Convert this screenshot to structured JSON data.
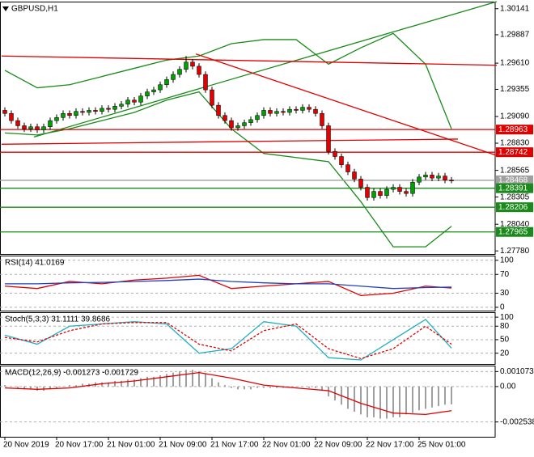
{
  "chart_data": [
    {
      "type": "candlestick",
      "title": "GBPUSD,H1",
      "categories": [
        "20 Nov 2019",
        null,
        null,
        null,
        null,
        null,
        null,
        null,
        "20 Nov 17:00",
        null,
        null,
        null,
        null,
        null,
        null,
        null,
        "21 Nov 01:00",
        null,
        null,
        null,
        null,
        null,
        null,
        null,
        "21 Nov 09:00",
        null,
        null,
        null,
        null,
        null,
        null,
        null,
        "21 Nov 17:00",
        null,
        null,
        null,
        null,
        null,
        null,
        null,
        "22 Nov 01:00",
        null,
        null,
        null,
        null,
        null,
        null,
        null,
        "22 Nov 09:00",
        null,
        null,
        null,
        null,
        null,
        null,
        null,
        "22 Nov 17:00",
        null,
        null,
        null,
        null,
        null,
        null,
        null,
        "25 Nov 01:00",
        null,
        null,
        null,
        null,
        null
      ],
      "open": [
        1.2915,
        1.2912,
        1.2905,
        1.29,
        1.2897,
        1.2899,
        1.2896,
        1.2899,
        1.2905,
        1.2908,
        1.2912,
        1.291,
        1.2914,
        1.2913,
        1.2915,
        1.2914,
        1.2917,
        1.2916,
        1.2919,
        1.2921,
        1.2925,
        1.2923,
        1.2929,
        1.2933,
        1.2935,
        1.294,
        1.2945,
        1.295,
        1.2955,
        1.2962,
        1.2958,
        1.295,
        1.2935,
        1.292,
        1.291,
        1.2905,
        1.2898,
        1.29,
        1.2903,
        1.2906,
        1.291,
        1.2915,
        1.2912,
        1.2914,
        1.2913,
        1.2916,
        1.2915,
        1.2918,
        1.2916,
        1.2912,
        1.29,
        1.2875,
        1.287,
        1.2862,
        1.2855,
        1.2848,
        1.284,
        1.283,
        1.2836,
        1.2832,
        1.2838,
        1.284,
        1.2836,
        1.2834,
        1.2845,
        1.285,
        1.2852,
        1.2849,
        1.2851,
        1.2847
      ],
      "high": [
        1.2918,
        1.2915,
        1.2908,
        1.2903,
        1.2902,
        1.2902,
        1.2902,
        1.2908,
        1.2911,
        1.2915,
        1.2915,
        1.2917,
        1.2917,
        1.2918,
        1.2918,
        1.292,
        1.292,
        1.2922,
        1.2924,
        1.2928,
        1.2928,
        1.2932,
        1.2936,
        1.2938,
        1.2943,
        1.2948,
        1.2953,
        1.2958,
        1.2968,
        1.2965,
        1.2961,
        1.2953,
        1.2938,
        1.2923,
        1.2913,
        1.2908,
        1.2903,
        1.2906,
        1.2909,
        1.2913,
        1.2918,
        1.2918,
        1.2917,
        1.2917,
        1.2919,
        1.2919,
        1.2921,
        1.2921,
        1.2919,
        1.2915,
        1.2903,
        1.2878,
        1.2873,
        1.2865,
        1.2858,
        1.2851,
        1.2843,
        1.2839,
        1.2839,
        1.2841,
        1.2843,
        1.2843,
        1.2839,
        1.2848,
        1.2853,
        1.2855,
        1.2855,
        1.2854,
        1.2854,
        1.285
      ],
      "low": [
        1.2909,
        1.2902,
        1.2897,
        1.2894,
        1.2894,
        1.2893,
        1.2893,
        1.2896,
        1.2902,
        1.2905,
        1.2907,
        1.2907,
        1.291,
        1.291,
        1.2911,
        1.2911,
        1.2913,
        1.2913,
        1.2916,
        1.2918,
        1.292,
        1.292,
        1.2926,
        1.293,
        1.2932,
        1.2937,
        1.2942,
        1.2947,
        1.2952,
        1.2955,
        1.2947,
        1.2932,
        1.2917,
        1.2907,
        1.2902,
        1.2895,
        1.2895,
        1.2897,
        1.29,
        1.2903,
        1.2907,
        1.2909,
        1.2909,
        1.291,
        1.291,
        1.2912,
        1.2912,
        1.2913,
        1.2909,
        1.2897,
        1.2872,
        1.2867,
        1.2859,
        1.2852,
        1.2845,
        1.2837,
        1.2827,
        1.2827,
        1.2829,
        1.2829,
        1.2835,
        1.2833,
        1.2831,
        1.2831,
        1.2842,
        1.2847,
        1.2846,
        1.2846,
        1.2844,
        1.2844
      ],
      "close": [
        1.2912,
        1.2905,
        1.29,
        1.2897,
        1.2899,
        1.2896,
        1.2899,
        1.2905,
        1.2908,
        1.2912,
        1.291,
        1.2914,
        1.2913,
        1.2915,
        1.2914,
        1.2917,
        1.2916,
        1.2919,
        1.2921,
        1.2925,
        1.2923,
        1.2929,
        1.2933,
        1.2935,
        1.294,
        1.2945,
        1.295,
        1.2955,
        1.2962,
        1.2958,
        1.295,
        1.2935,
        1.292,
        1.291,
        1.2905,
        1.2898,
        1.29,
        1.2903,
        1.2906,
        1.291,
        1.2915,
        1.2912,
        1.2914,
        1.2913,
        1.2916,
        1.2915,
        1.2918,
        1.2916,
        1.2912,
        1.29,
        1.2875,
        1.287,
        1.2862,
        1.2855,
        1.2848,
        1.284,
        1.283,
        1.2836,
        1.2832,
        1.2838,
        1.284,
        1.2836,
        1.2834,
        1.2845,
        1.285,
        1.2852,
        1.2849,
        1.2851,
        1.2847,
        1.28468
      ],
      "up_color": "#00a000",
      "down_color": "#e00000",
      "ylim": [
        1.2775,
        1.3021
      ],
      "yticks": [
        1.30141,
        1.29887,
        {
          "value": 1.2961,
          "label": "1.29610"
        },
        1.29355,
        {
          "value": 1.2909,
          "label": "1.29090"
        },
        {
          "value": 1.2883,
          "label": "1.28830"
        },
        1.28565,
        1.28305,
        {
          "value": 1.2804,
          "label": "1.28040"
        },
        {
          "value": 1.2778,
          "label": "1.27780"
        }
      ],
      "lines": [
        {
          "color": "#1a8a1a",
          "x": [
            0,
            5,
            10,
            15,
            20,
            25,
            30,
            35,
            40,
            45,
            50,
            55,
            60,
            65,
            69
          ],
          "values": [
            1.2954,
            1.2937,
            1.294,
            1.2948,
            1.2956,
            1.2964,
            1.2968,
            1.298,
            1.2984,
            1.2984,
            1.296,
            1.2976,
            1.299,
            1.296,
            1.2897
          ]
        },
        {
          "color": "#1a8a1a",
          "x": [
            0,
            5,
            10,
            15,
            20,
            25,
            30,
            35,
            40,
            45,
            50,
            55,
            60,
            65,
            69
          ],
          "values": [
            1.2893,
            1.2891,
            1.2897,
            1.2905,
            1.2913,
            1.2925,
            1.2933,
            1.2897,
            1.2873,
            1.2869,
            1.2865,
            1.2826,
            1.2782,
            1.2782,
            1.2802
          ]
        }
      ],
      "trendlines": [
        {
          "color": "#1a8a1a",
          "x": [
            4.5,
            76
          ],
          "values": [
            1.2889,
            1.3021
          ]
        },
        {
          "color": "#e00000",
          "x": [
            29.5,
            76
          ],
          "values": [
            1.297,
            1.2871
          ]
        },
        {
          "color": "#e00000",
          "x": [
            -0.5,
            76
          ],
          "values": [
            1.2968,
            1.2959
          ]
        },
        {
          "color": "#e00000",
          "x": [
            -0.5,
            70
          ],
          "values": [
            1.2882,
            1.2887
          ]
        }
      ],
      "levels": [
        {
          "value": 1.28963,
          "color": "#e00000"
        },
        {
          "value": 1.28742,
          "color": "#e00000"
        },
        {
          "value": 1.28468,
          "color": "#a0a0a0"
        },
        {
          "value": 1.28391,
          "color": "#1a8a1a"
        },
        {
          "value": 1.28206,
          "color": "#1a8a1a"
        },
        {
          "value": 1.27965,
          "color": "#1a8a1a"
        }
      ]
    },
    {
      "type": "line",
      "title": "RSI(14) 41.0169",
      "ylim": [
        -7,
        110
      ],
      "yticks": [
        0,
        30,
        70,
        100
      ],
      "x": [
        0,
        5,
        10,
        15,
        20,
        25,
        30,
        35,
        40,
        45,
        50,
        55,
        60,
        65,
        69
      ],
      "series": [
        {
          "color": "#e00000",
          "values": [
            45,
            40,
            55,
            50,
            58,
            62,
            68,
            40,
            45,
            50,
            55,
            25,
            30,
            45,
            41.0169
          ]
        },
        {
          "color": "#2040c0",
          "values": [
            50,
            50,
            52,
            53,
            55,
            57,
            60,
            55,
            52,
            50,
            50,
            45,
            40,
            42,
            43
          ]
        }
      ]
    },
    {
      "type": "line",
      "title": "Stoch(5,3,3) 31.1111 39.8686",
      "ylim": [
        -4,
        111
      ],
      "yticks": [
        20,
        50,
        80,
        100
      ],
      "x": [
        0,
        5,
        10,
        15,
        20,
        25,
        30,
        35,
        40,
        45,
        50,
        55,
        60,
        65,
        69
      ],
      "series": [
        {
          "color": "#20b0c0",
          "values": [
            60,
            40,
            80,
            85,
            90,
            85,
            20,
            30,
            90,
            80,
            10,
            5,
            50,
            95,
            31.1111
          ]
        },
        {
          "color": "#e00000",
          "dashed": true,
          "values": [
            55,
            45,
            70,
            85,
            88,
            88,
            40,
            25,
            70,
            85,
            30,
            8,
            30,
            80,
            39.8686
          ]
        }
      ]
    },
    {
      "type": "macd",
      "title": "MACD(12,26,9) -0.001273 -0.001729",
      "ylim": [
        -0.0036,
        0.0015
      ],
      "yticks": [
        0.001073,
        {
          "value": 0,
          "label": "0.00"
        },
        -0.002538
      ],
      "histogram": {
        "color": "#a0a0a0",
        "values": [
          0.0001,
          0,
          -0.0001,
          -0.0002,
          -0.0002,
          -0.0003,
          -0.0003,
          -0.0002,
          -0.0001,
          0,
          0.0001,
          0.0001,
          0.0002,
          0.0002,
          0.0003,
          0.0003,
          0.0003,
          0.0004,
          0.0004,
          0.0005,
          0.0005,
          0.0006,
          0.0007,
          0.0007,
          0.0008,
          0.0009,
          0.001,
          0.0011,
          0.0012,
          0.0012,
          0.0011,
          0.0009,
          0.0006,
          0.0003,
          0.0001,
          -0.0001,
          -0.0002,
          -0.0002,
          -0.0002,
          -0.0001,
          -0.0001,
          -0.0001,
          -0.0001,
          -0.0001,
          0,
          0,
          0,
          -0.0001,
          -0.0001,
          -0.0003,
          -0.0007,
          -0.001,
          -0.0013,
          -0.0016,
          -0.0018,
          -0.002,
          -0.0022,
          -0.0022,
          -0.0023,
          -0.0023,
          -0.0022,
          -0.0022,
          -0.002,
          -0.0019,
          -0.0017,
          -0.0016,
          -0.0015,
          -0.0014,
          -0.0013,
          -0.001273
        ]
      },
      "signal": {
        "color": "#e00000",
        "x": [
          0,
          5,
          10,
          15,
          20,
          25,
          30,
          35,
          40,
          45,
          50,
          55,
          60,
          65,
          69
        ],
        "values": [
          -0.0001,
          -0.0002,
          -0.0001,
          0.0002,
          0.0004,
          0.0007,
          0.001,
          0.0006,
          0.0001,
          -0.0001,
          -0.0003,
          -0.0012,
          -0.0019,
          -0.002,
          -0.001729
        ]
      }
    }
  ]
}
